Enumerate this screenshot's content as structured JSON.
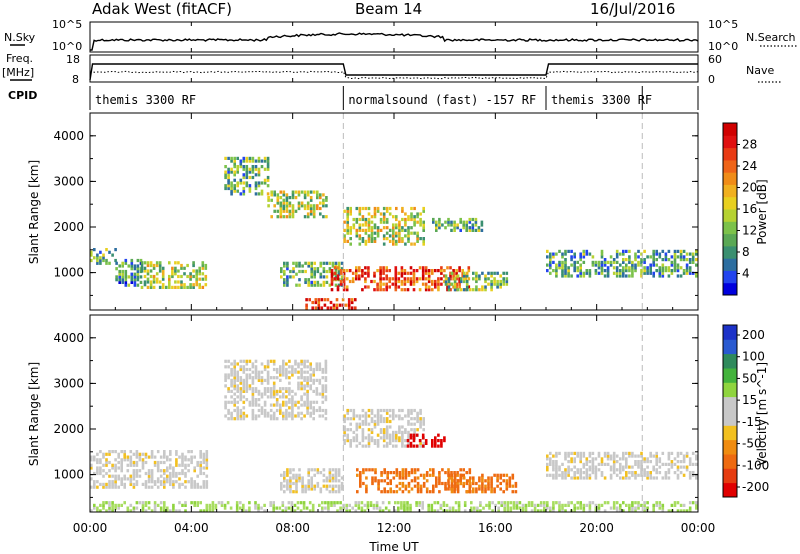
{
  "header": {
    "station": "Adak West (fitACF)",
    "beam": "Beam 14",
    "date": "16/Jul/2016"
  },
  "left_labels": {
    "nsky": "N.Sky",
    "freq": "Freq.",
    "freq_unit": "[MHz]",
    "cpid": "CPID"
  },
  "right_labels": {
    "nsearch": "N.Search",
    "nave": "Nave"
  },
  "nsky_axis": {
    "left_ticks": [
      "10^5",
      "10^0"
    ],
    "right_ticks": [
      "10^5",
      "10^0"
    ]
  },
  "freq_axis": {
    "left_ticks": [
      "18",
      "8"
    ],
    "right_ticks": [
      "60",
      "0"
    ]
  },
  "cpid_segments": [
    {
      "label": "themis 3300 RF",
      "start_h": 0,
      "end_h": 10
    },
    {
      "label": "normalsound (fast) -157 RF",
      "start_h": 10,
      "end_h": 18
    },
    {
      "label": "themis 3300 RF",
      "start_h": 18,
      "end_h": 24
    }
  ],
  "x_axis": {
    "label": "Time UT",
    "ticks": [
      "00:00",
      "04:00",
      "08:00",
      "12:00",
      "16:00",
      "20:00",
      "00:00"
    ],
    "range_h": [
      0,
      24
    ]
  },
  "chart_data": [
    {
      "type": "heatmap",
      "name": "power",
      "ylabel": "Slant Range [km]",
      "yticks": [
        "1000",
        "2000",
        "3000",
        "4000"
      ],
      "ylim": [
        180,
        4500
      ],
      "colorbar": {
        "label": "Power [dB]",
        "ticks": [
          "4",
          "8",
          "12",
          "16",
          "20",
          "24",
          "28"
        ],
        "colors": [
          "#0000dd",
          "#2244ee",
          "#2d6ea0",
          "#3a8f70",
          "#5aa855",
          "#7cc24a",
          "#b6d232",
          "#e8d020",
          "#f0b020",
          "#f08c18",
          "#ef6418",
          "#e83a14",
          "#e01010",
          "#d00000"
        ]
      },
      "regions": [
        {
          "t": [
            0.0,
            1.0
          ],
          "r": [
            1180,
            1500
          ],
          "level": 0.3
        },
        {
          "t": [
            1.0,
            2.0
          ],
          "r": [
            700,
            1300
          ],
          "level": 0.25
        },
        {
          "t": [
            2.0,
            4.6
          ],
          "r": [
            650,
            1200
          ],
          "level": 0.45
        },
        {
          "t": [
            5.3,
            7.0
          ],
          "r": [
            2700,
            3500
          ],
          "level": 0.35
        },
        {
          "t": [
            7.0,
            9.3
          ],
          "r": [
            2200,
            2800
          ],
          "level": 0.45
        },
        {
          "t": [
            7.5,
            10.0
          ],
          "r": [
            700,
            1200
          ],
          "level": 0.35
        },
        {
          "t": [
            10.0,
            13.2
          ],
          "r": [
            1600,
            2400
          ],
          "level": 0.45
        },
        {
          "t": [
            9.5,
            15.0
          ],
          "r": [
            600,
            1100
          ],
          "level": 0.8
        },
        {
          "t": [
            8.5,
            10.5
          ],
          "r": [
            200,
            400
          ],
          "level": 0.85
        },
        {
          "t": [
            14.0,
            16.5
          ],
          "r": [
            600,
            1000
          ],
          "level": 0.35
        },
        {
          "t": [
            13.5,
            15.5
          ],
          "r": [
            1900,
            2200
          ],
          "level": 0.3
        },
        {
          "t": [
            18.0,
            24.0
          ],
          "r": [
            900,
            1450
          ],
          "level": 0.3
        }
      ]
    },
    {
      "type": "heatmap",
      "name": "velocity",
      "ylabel": "Slant Range [km]",
      "yticks": [
        "1000",
        "2000",
        "3000",
        "4000"
      ],
      "ylim": [
        180,
        4500
      ],
      "colorbar": {
        "label": "Velocity [m s^-1]",
        "ticks": [
          "200",
          "100",
          "50",
          "15",
          "-15",
          "-50",
          "-100",
          "-200"
        ],
        "colors": [
          "#1c32c8",
          "#2a5ad0",
          "#2f8a5c",
          "#43b33c",
          "#8fd43e",
          "#c8c8c8",
          "#c8c8c8",
          "#f2c020",
          "#f08c10",
          "#ee6a10",
          "#e63c10",
          "#e00000"
        ]
      },
      "regions": [
        {
          "t": [
            0.0,
            4.6
          ],
          "r": [
            700,
            1500
          ],
          "v": 0
        },
        {
          "t": [
            5.3,
            9.3
          ],
          "r": [
            2200,
            3500
          ],
          "v": 0
        },
        {
          "t": [
            7.5,
            10.0
          ],
          "r": [
            600,
            1100
          ],
          "v": 0
        },
        {
          "t": [
            10.0,
            13.2
          ],
          "r": [
            1600,
            2400
          ],
          "v": 0
        },
        {
          "t": [
            10.5,
            15.0
          ],
          "r": [
            600,
            1100
          ],
          "v": -60
        },
        {
          "t": [
            14.0,
            16.8
          ],
          "r": [
            600,
            1000
          ],
          "v": -60
        },
        {
          "t": [
            12.5,
            14.0
          ],
          "r": [
            1600,
            1900
          ],
          "v": -220
        },
        {
          "t": [
            18.0,
            24.0
          ],
          "r": [
            900,
            1450
          ],
          "v": 0
        },
        {
          "t": [
            0.0,
            24.0
          ],
          "r": [
            180,
            420
          ],
          "v": 40
        }
      ]
    }
  ]
}
